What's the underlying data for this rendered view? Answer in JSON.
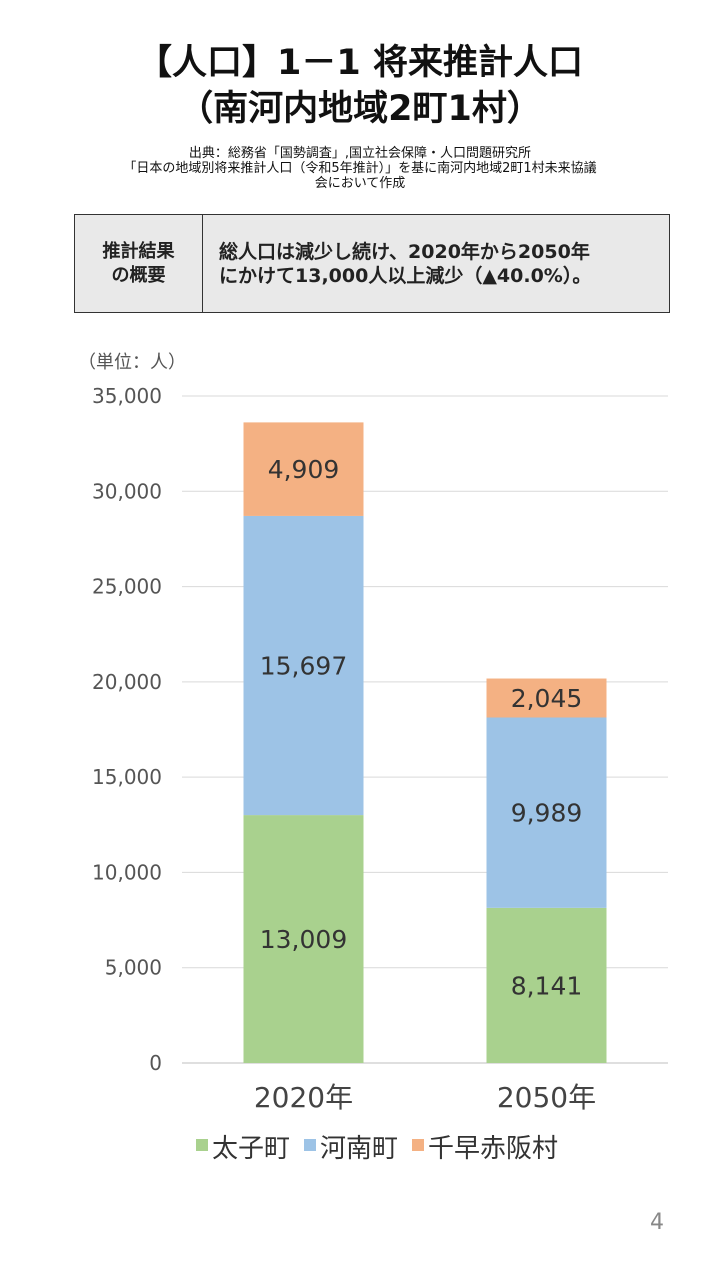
{
  "title_line1": "【人口】1－1 将来推計人口",
  "title_line2": "（南河内地域2町1村）",
  "source_line1": "出典：総務省「国勢調査」,国立社会保障・人口問題研究所",
  "source_line2": "「日本の地域別将来推計人口（令和5年推計）」を基に南河内地域2町1村未来協議",
  "source_line3": "会において作成",
  "summary": {
    "label": "推計結果\nの概要",
    "text": "総人口は減少し続け、2020年から2050年\nにかけて13,000人以上減少（▲40.0%）。"
  },
  "page_number": "4",
  "chart_data": {
    "type": "bar",
    "stacked": true,
    "unit_label": "（単位：人）",
    "categories": [
      "2020年",
      "2050年"
    ],
    "series": [
      {
        "name": "太子町",
        "values": [
          13009,
          8141
        ],
        "labels": [
          "13,009",
          "8,141"
        ],
        "color": "#a9d18e"
      },
      {
        "name": "河南町",
        "values": [
          15697,
          9989
        ],
        "labels": [
          "15,697",
          "9,989"
        ],
        "color": "#9dc3e6"
      },
      {
        "name": "千早赤阪村",
        "values": [
          4909,
          2045
        ],
        "labels": [
          "4,909",
          "2,045"
        ],
        "color": "#f4b183"
      }
    ],
    "ylim": [
      0,
      35000
    ],
    "yticks": [
      0,
      5000,
      10000,
      15000,
      20000,
      25000,
      30000,
      35000
    ],
    "ytick_labels": [
      "0",
      "5,000",
      "10,000",
      "15,000",
      "20,000",
      "25,000",
      "30,000",
      "35,000"
    ],
    "grid": true,
    "legend_position": "bottom"
  }
}
